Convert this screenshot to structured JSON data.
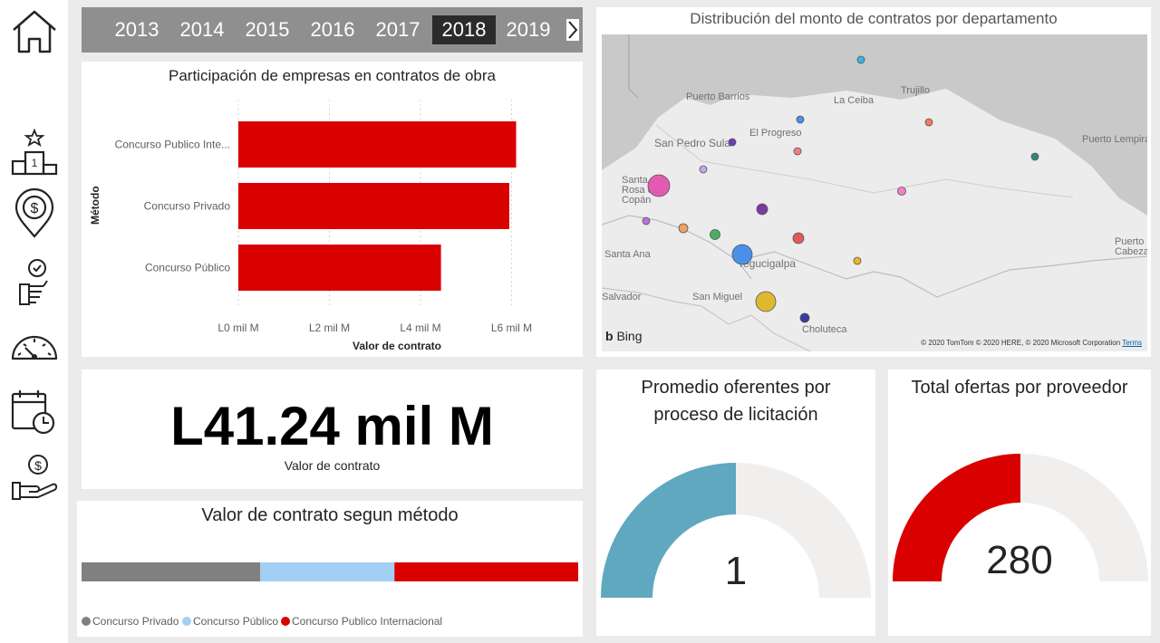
{
  "nav": {
    "items": [
      {
        "name": "home-icon"
      },
      {
        "name": "ranking-icon"
      },
      {
        "name": "money-location-icon"
      },
      {
        "name": "checklist-hand-icon"
      },
      {
        "name": "speedometer-icon"
      },
      {
        "name": "calendar-clock-icon"
      },
      {
        "name": "money-hand-icon"
      }
    ]
  },
  "years": {
    "items": [
      "2013",
      "2014",
      "2015",
      "2016",
      "2017",
      "2018",
      "2019"
    ],
    "selected": "2018"
  },
  "bar_panel": {
    "title": "Participación de empresas en contratos de obra",
    "ylabel": "Método",
    "xlabel": "Valor de contrato"
  },
  "kpi": {
    "value": "L41.24 mil M",
    "label": "Valor de contrato"
  },
  "stacked_panel": {
    "title": "Valor de contrato segun método"
  },
  "map": {
    "title": "Distribución del monto de contratos por departamento",
    "bing_label": "Bing",
    "copyright": "© 2020 TomTom © 2020 HERE, © 2020 Microsoft Corporation",
    "terms": "Terms",
    "places": [
      "Puerto Barrios",
      "La Ceiba",
      "Trujillo",
      "El Progreso",
      "San Pedro Sula",
      "Puerto Lempira",
      "Santa Rosa de Copán",
      "Santa Ana",
      "Tegucigalpa",
      "San Miguel",
      "Salvador",
      "Choluteca",
      "Puerto Cabezas"
    ]
  },
  "gauge1": {
    "title_line1": "Promedio oferentes por",
    "title_line2": "proceso de licitación",
    "value": "1",
    "fill_fraction": 0.5,
    "color": "#5fa8bf"
  },
  "gauge2": {
    "title": "Total ofertas por proveedor",
    "value": "280",
    "fill_fraction": 0.5,
    "color": "#d90000"
  },
  "chart_data": [
    {
      "type": "bar",
      "orientation": "horizontal",
      "title": "Participación de empresas en contratos de obra",
      "xlabel": "Valor de contrato",
      "ylabel": "Método",
      "categories": [
        "Concurso Publico Inte...",
        "Concurso Privado",
        "Concurso Público"
      ],
      "values": [
        6.1,
        5.95,
        4.45
      ],
      "unit": "mil M",
      "xlim": [
        0,
        6.5
      ],
      "x_ticks": [
        0,
        2,
        4,
        6
      ],
      "x_tick_labels": [
        "L0 mil M",
        "L2 mil M",
        "L4 mil M",
        "L6 mil M"
      ],
      "color": "#d90000",
      "grid": true
    },
    {
      "type": "bar",
      "orientation": "stacked-horizontal",
      "title": "Valor de contrato segun método",
      "series": [
        {
          "name": "Concurso Privado",
          "value": 0.36,
          "color": "#808080"
        },
        {
          "name": "Concurso Público",
          "value": 0.27,
          "color": "#a4cff5"
        },
        {
          "name": "Concurso Publico Internacional",
          "value": 0.37,
          "color": "#d90000"
        }
      ],
      "legend": "bottom-left"
    }
  ]
}
